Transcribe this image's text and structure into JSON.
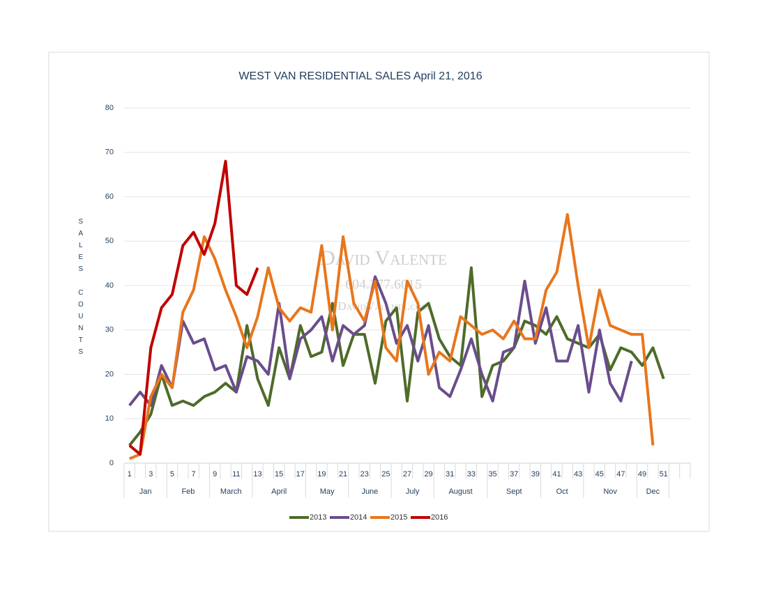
{
  "chart_data": {
    "type": "line",
    "title": "WEST VAN RESIDENTIAL SALES April 21, 2016",
    "y_axis_label": "SALES COUNTS",
    "watermark": [
      "David Valente",
      "604.377.6015",
      "DavidValente.com"
    ],
    "categories": [
      1,
      null,
      3,
      null,
      5,
      null,
      7,
      null,
      9,
      null,
      11,
      null,
      13,
      null,
      15,
      null,
      17,
      null,
      19,
      null,
      21,
      null,
      23,
      null,
      25,
      null,
      27,
      null,
      29,
      null,
      31,
      null,
      33,
      null,
      35,
      null,
      37,
      null,
      39,
      null,
      41,
      null,
      43,
      null,
      45,
      null,
      47,
      null,
      49,
      null,
      51,
      null,
      null
    ],
    "month_groups": [
      {
        "label": "Jan",
        "weeks": 4
      },
      {
        "label": "Feb",
        "weeks": 4
      },
      {
        "label": "March",
        "weeks": 4
      },
      {
        "label": "April",
        "weeks": 5
      },
      {
        "label": "May",
        "weeks": 4
      },
      {
        "label": "June",
        "weeks": 4
      },
      {
        "label": "July",
        "weeks": 4
      },
      {
        "label": "August",
        "weeks": 5
      },
      {
        "label": "Sept",
        "weeks": 5
      },
      {
        "label": "Oct",
        "weeks": 4
      },
      {
        "label": "Nov",
        "weeks": 5
      },
      {
        "label": "Dec",
        "weeks": 3
      }
    ],
    "series": [
      {
        "name": "2013",
        "color": "#4e6b2a",
        "values": [
          4,
          7,
          11,
          20,
          13,
          14,
          13,
          15,
          16,
          18,
          16,
          31,
          19,
          13,
          26,
          19,
          31,
          24,
          25,
          36,
          22,
          29,
          29,
          18,
          32,
          35,
          14,
          34,
          36,
          28,
          24,
          22,
          44,
          15,
          22,
          23,
          26,
          32,
          31,
          29,
          33,
          28,
          27,
          26,
          29,
          21,
          26,
          25,
          22,
          26,
          19,
          null,
          null
        ]
      },
      {
        "name": "2014",
        "color": "#6a4d8c",
        "values": [
          13,
          16,
          13,
          22,
          17,
          32,
          27,
          28,
          21,
          22,
          16,
          24,
          23,
          20,
          36,
          19,
          28,
          30,
          33,
          23,
          31,
          29,
          31,
          42,
          36,
          27,
          31,
          23,
          31,
          17,
          15,
          21,
          28,
          20,
          14,
          25,
          26,
          41,
          27,
          35,
          23,
          23,
          31,
          16,
          30,
          18,
          14,
          23,
          null,
          null,
          null,
          null,
          null
        ]
      },
      {
        "name": "2015",
        "color": "#e8761c",
        "values": [
          1,
          2,
          15,
          20,
          17,
          34,
          39,
          51,
          46,
          39,
          33,
          26,
          33,
          44,
          35,
          32,
          35,
          34,
          49,
          30,
          51,
          36,
          32,
          41,
          26,
          23,
          41,
          36,
          20,
          25,
          23,
          33,
          31,
          29,
          30,
          28,
          32,
          28,
          28,
          39,
          43,
          56,
          40,
          26,
          39,
          31,
          30,
          29,
          29,
          4,
          null,
          null,
          null
        ]
      },
      {
        "name": "2016",
        "color": "#c00000",
        "values": [
          4,
          2,
          26,
          35,
          38,
          49,
          52,
          47,
          54,
          68,
          40,
          38,
          44,
          null,
          null,
          null,
          null,
          null,
          null,
          null,
          null,
          null,
          null,
          null,
          null,
          null,
          null,
          null,
          null,
          null,
          null,
          null,
          null,
          null,
          null,
          null,
          null,
          null,
          null,
          null,
          null,
          null,
          null,
          null,
          null,
          null,
          null,
          null,
          null,
          null,
          null,
          null,
          null
        ]
      }
    ],
    "ylim": [
      0,
      80
    ],
    "yticks": [
      0,
      10,
      20,
      30,
      40,
      50,
      60,
      70,
      80
    ],
    "grid": true,
    "legend": "bottom"
  }
}
